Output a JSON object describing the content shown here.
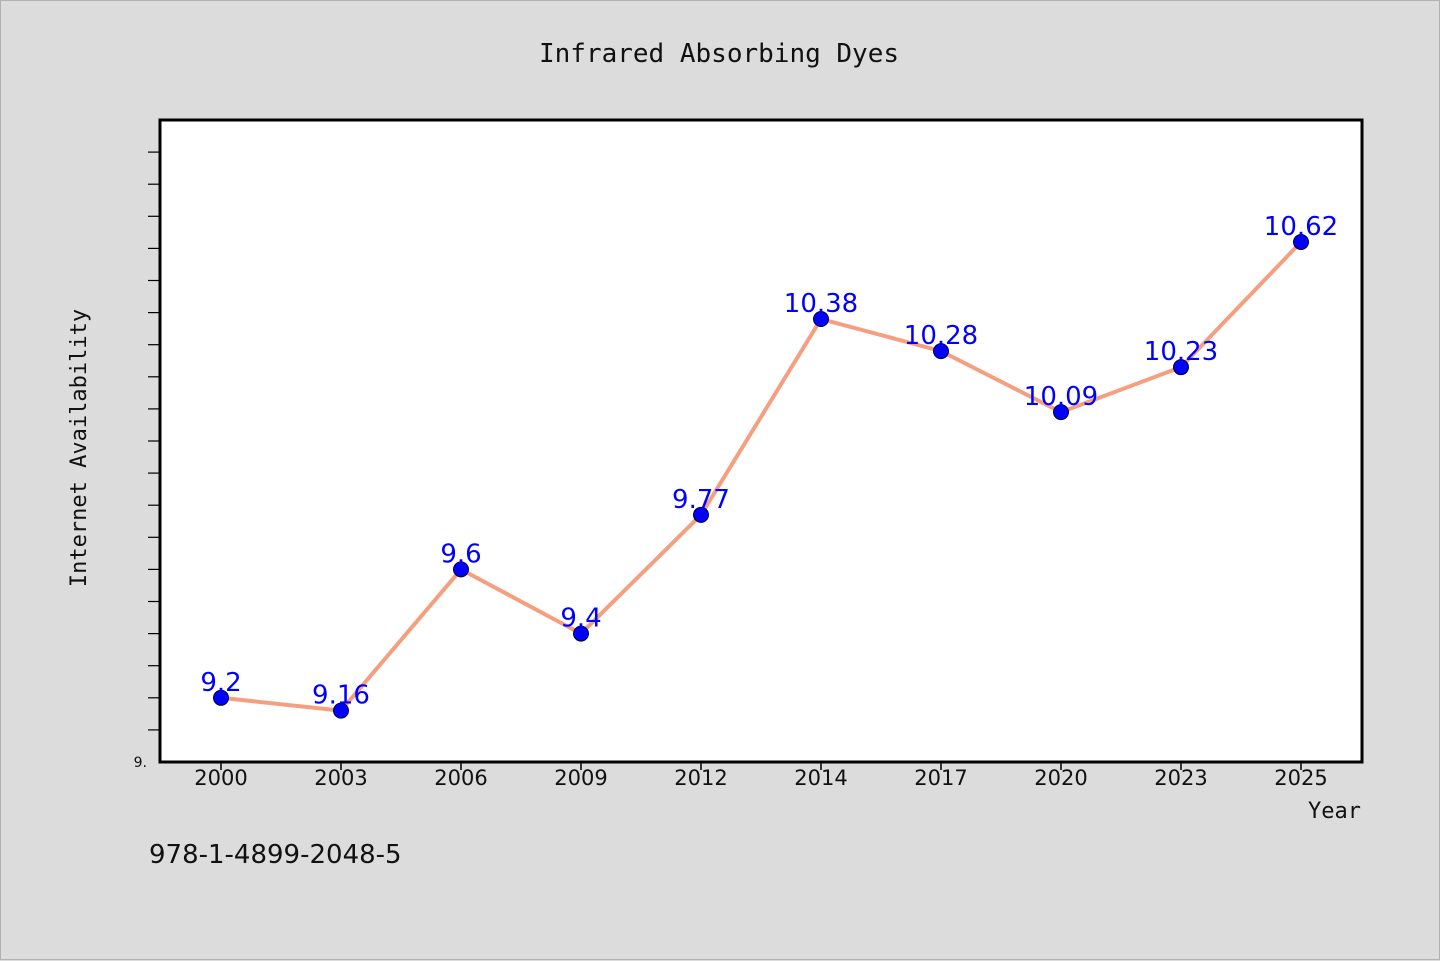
{
  "chart_data": {
    "type": "line",
    "title": "Infrared Absorbing Dyes",
    "xlabel": "Year",
    "ylabel": "Internet Availability",
    "categories": [
      "2000",
      "2003",
      "2006",
      "2009",
      "2012",
      "2014",
      "2017",
      "2020",
      "2023",
      "2025"
    ],
    "series": [
      {
        "values": [
          9.2,
          9.16,
          9.6,
          9.4,
          9.77,
          10.38,
          10.28,
          10.09,
          10.23,
          10.62
        ],
        "data_labels": [
          "9.2",
          "9.16",
          "9.6",
          "9.4",
          "9.77",
          "10.38",
          "10.28",
          "10.09",
          "10.23",
          "10.62"
        ],
        "line_color": "#f4a080",
        "marker_color": "#0000ff",
        "label_color": "#0000ff"
      }
    ],
    "ylim": [
      9.0,
      11.0
    ],
    "y_min_label": "9.",
    "grid": false,
    "legend": "none"
  },
  "footer": {
    "isbn": "978-1-4899-2048-5"
  }
}
